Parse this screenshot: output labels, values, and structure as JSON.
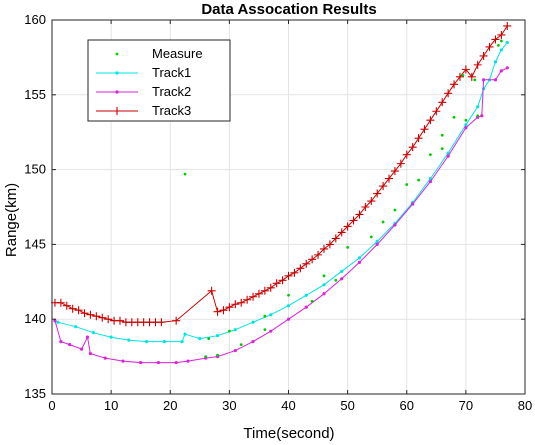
{
  "chart_data": {
    "type": "line",
    "title": "Data Assocation Results",
    "xlabel": "Time(second)",
    "ylabel": "Range(km)",
    "xlim": [
      0,
      80
    ],
    "ylim": [
      135,
      160
    ],
    "xticks": [
      0,
      10,
      20,
      30,
      40,
      50,
      60,
      70,
      80
    ],
    "yticks": [
      135,
      140,
      145,
      150,
      155,
      160
    ],
    "grid": true,
    "legend_position": "top-left",
    "series": [
      {
        "name": "Measure",
        "color": "#00cc00",
        "style": "points",
        "points": [
          [
            22.5,
            149.7
          ],
          [
            69.5,
            156.3
          ],
          [
            71.5,
            156.0
          ],
          [
            75.5,
            158.3
          ],
          [
            76.0,
            158.6
          ],
          [
            26.5,
            138.7
          ],
          [
            30.0,
            139.2
          ],
          [
            40.0,
            141.6
          ],
          [
            50.0,
            144.8
          ],
          [
            60.0,
            149.0
          ],
          [
            64.0,
            151.0
          ],
          [
            66.0,
            152.3
          ],
          [
            68.0,
            153.5
          ],
          [
            54.0,
            145.5
          ],
          [
            58.0,
            147.3
          ],
          [
            48.0,
            142.6
          ],
          [
            44.0,
            141.2
          ],
          [
            36.0,
            139.3
          ],
          [
            32.0,
            138.3
          ],
          [
            28.0,
            137.6
          ],
          [
            26.0,
            137.5
          ],
          [
            62.0,
            149.3
          ],
          [
            66.0,
            151.4
          ],
          [
            70.0,
            153.3
          ],
          [
            72.0,
            153.6
          ],
          [
            36.0,
            140.2
          ],
          [
            46.0,
            142.9
          ],
          [
            56.0,
            146.5
          ]
        ]
      },
      {
        "name": "Track1",
        "color": "#00e5e5",
        "style": "line-dot",
        "points": [
          [
            1,
            139.8
          ],
          [
            4,
            139.5
          ],
          [
            7,
            139.1
          ],
          [
            10,
            138.8
          ],
          [
            13,
            138.6
          ],
          [
            16,
            138.5
          ],
          [
            19,
            138.5
          ],
          [
            22,
            138.5
          ],
          [
            22.5,
            139.0
          ],
          [
            25,
            138.7
          ],
          [
            28,
            138.9
          ],
          [
            31,
            139.3
          ],
          [
            34,
            139.8
          ],
          [
            37,
            140.3
          ],
          [
            40,
            140.9
          ],
          [
            43,
            141.6
          ],
          [
            46,
            142.3
          ],
          [
            49,
            143.2
          ],
          [
            52,
            144.1
          ],
          [
            55,
            145.2
          ],
          [
            58,
            146.4
          ],
          [
            61,
            147.8
          ],
          [
            64,
            149.4
          ],
          [
            67,
            151.1
          ],
          [
            70,
            153.0
          ],
          [
            72,
            154.2
          ],
          [
            73,
            155.4
          ],
          [
            74,
            156.0
          ],
          [
            75,
            157.2
          ],
          [
            76,
            158.0
          ],
          [
            77,
            158.5
          ]
        ]
      },
      {
        "name": "Track2",
        "color": "#dd22dd",
        "style": "line-dot",
        "points": [
          [
            0.5,
            139.9
          ],
          [
            1.5,
            138.5
          ],
          [
            3,
            138.3
          ],
          [
            5,
            138.0
          ],
          [
            6,
            138.8
          ],
          [
            6.5,
            137.7
          ],
          [
            9,
            137.4
          ],
          [
            12,
            137.2
          ],
          [
            15,
            137.1
          ],
          [
            18,
            137.1
          ],
          [
            21,
            137.1
          ],
          [
            23,
            137.2
          ],
          [
            26,
            137.4
          ],
          [
            28,
            137.5
          ],
          [
            31,
            137.9
          ],
          [
            34,
            138.5
          ],
          [
            37,
            139.2
          ],
          [
            40,
            140.0
          ],
          [
            43,
            140.8
          ],
          [
            46,
            141.7
          ],
          [
            49,
            142.7
          ],
          [
            52,
            143.8
          ],
          [
            55,
            145.0
          ],
          [
            58,
            146.3
          ],
          [
            61,
            147.7
          ],
          [
            64,
            149.2
          ],
          [
            67,
            150.9
          ],
          [
            70,
            152.8
          ],
          [
            72,
            153.5
          ],
          [
            72.7,
            153.6
          ],
          [
            73,
            156.0
          ],
          [
            75,
            156.0
          ],
          [
            76,
            156.6
          ],
          [
            77,
            156.8
          ]
        ]
      },
      {
        "name": "Track3",
        "color": "#cc0000",
        "style": "line-plus",
        "points": [
          [
            0.5,
            141.1
          ],
          [
            1.5,
            141.1
          ],
          [
            2.5,
            140.9
          ],
          [
            3.5,
            140.7
          ],
          [
            4.5,
            140.6
          ],
          [
            5.5,
            140.4
          ],
          [
            6.5,
            140.3
          ],
          [
            7.5,
            140.2
          ],
          [
            8.5,
            140.1
          ],
          [
            9.5,
            140.0
          ],
          [
            10.5,
            139.9
          ],
          [
            11.5,
            139.9
          ],
          [
            12.5,
            139.8
          ],
          [
            13.5,
            139.8
          ],
          [
            14.5,
            139.8
          ],
          [
            15.5,
            139.8
          ],
          [
            16.5,
            139.8
          ],
          [
            17.5,
            139.8
          ],
          [
            18.5,
            139.8
          ],
          [
            21.0,
            139.9
          ],
          [
            27.0,
            141.9
          ],
          [
            28.0,
            140.5
          ],
          [
            29.0,
            140.6
          ],
          [
            30.0,
            140.8
          ],
          [
            31.0,
            141.0
          ],
          [
            32.0,
            141.1
          ],
          [
            33.0,
            141.3
          ],
          [
            34.0,
            141.5
          ],
          [
            35.0,
            141.7
          ],
          [
            36.0,
            141.9
          ],
          [
            37.0,
            142.1
          ],
          [
            38.0,
            142.4
          ],
          [
            39.0,
            142.6
          ],
          [
            40.0,
            142.9
          ],
          [
            41.0,
            143.1
          ],
          [
            42.0,
            143.4
          ],
          [
            43.0,
            143.7
          ],
          [
            44.0,
            144.0
          ],
          [
            45.0,
            144.3
          ],
          [
            46.0,
            144.7
          ],
          [
            47.0,
            145.0
          ],
          [
            48.0,
            145.4
          ],
          [
            49.0,
            145.8
          ],
          [
            50.0,
            146.2
          ],
          [
            51.0,
            146.6
          ],
          [
            52.0,
            147.0
          ],
          [
            53.0,
            147.5
          ],
          [
            54.0,
            147.9
          ],
          [
            55.0,
            148.4
          ],
          [
            56.0,
            148.9
          ],
          [
            57.0,
            149.4
          ],
          [
            58.0,
            149.9
          ],
          [
            59.0,
            150.4
          ],
          [
            60.0,
            151.0
          ],
          [
            61.0,
            151.5
          ],
          [
            62.0,
            152.1
          ],
          [
            63.0,
            152.7
          ],
          [
            64.0,
            153.3
          ],
          [
            65.0,
            153.9
          ],
          [
            66.0,
            154.5
          ],
          [
            67.0,
            155.1
          ],
          [
            68.0,
            155.7
          ],
          [
            69.0,
            156.2
          ],
          [
            70.0,
            156.7
          ],
          [
            71.0,
            156.2
          ],
          [
            72.0,
            157.0
          ],
          [
            73.0,
            157.6
          ],
          [
            74.0,
            158.2
          ],
          [
            75.0,
            158.7
          ],
          [
            76.0,
            159.0
          ],
          [
            77.0,
            159.6
          ]
        ]
      }
    ]
  }
}
